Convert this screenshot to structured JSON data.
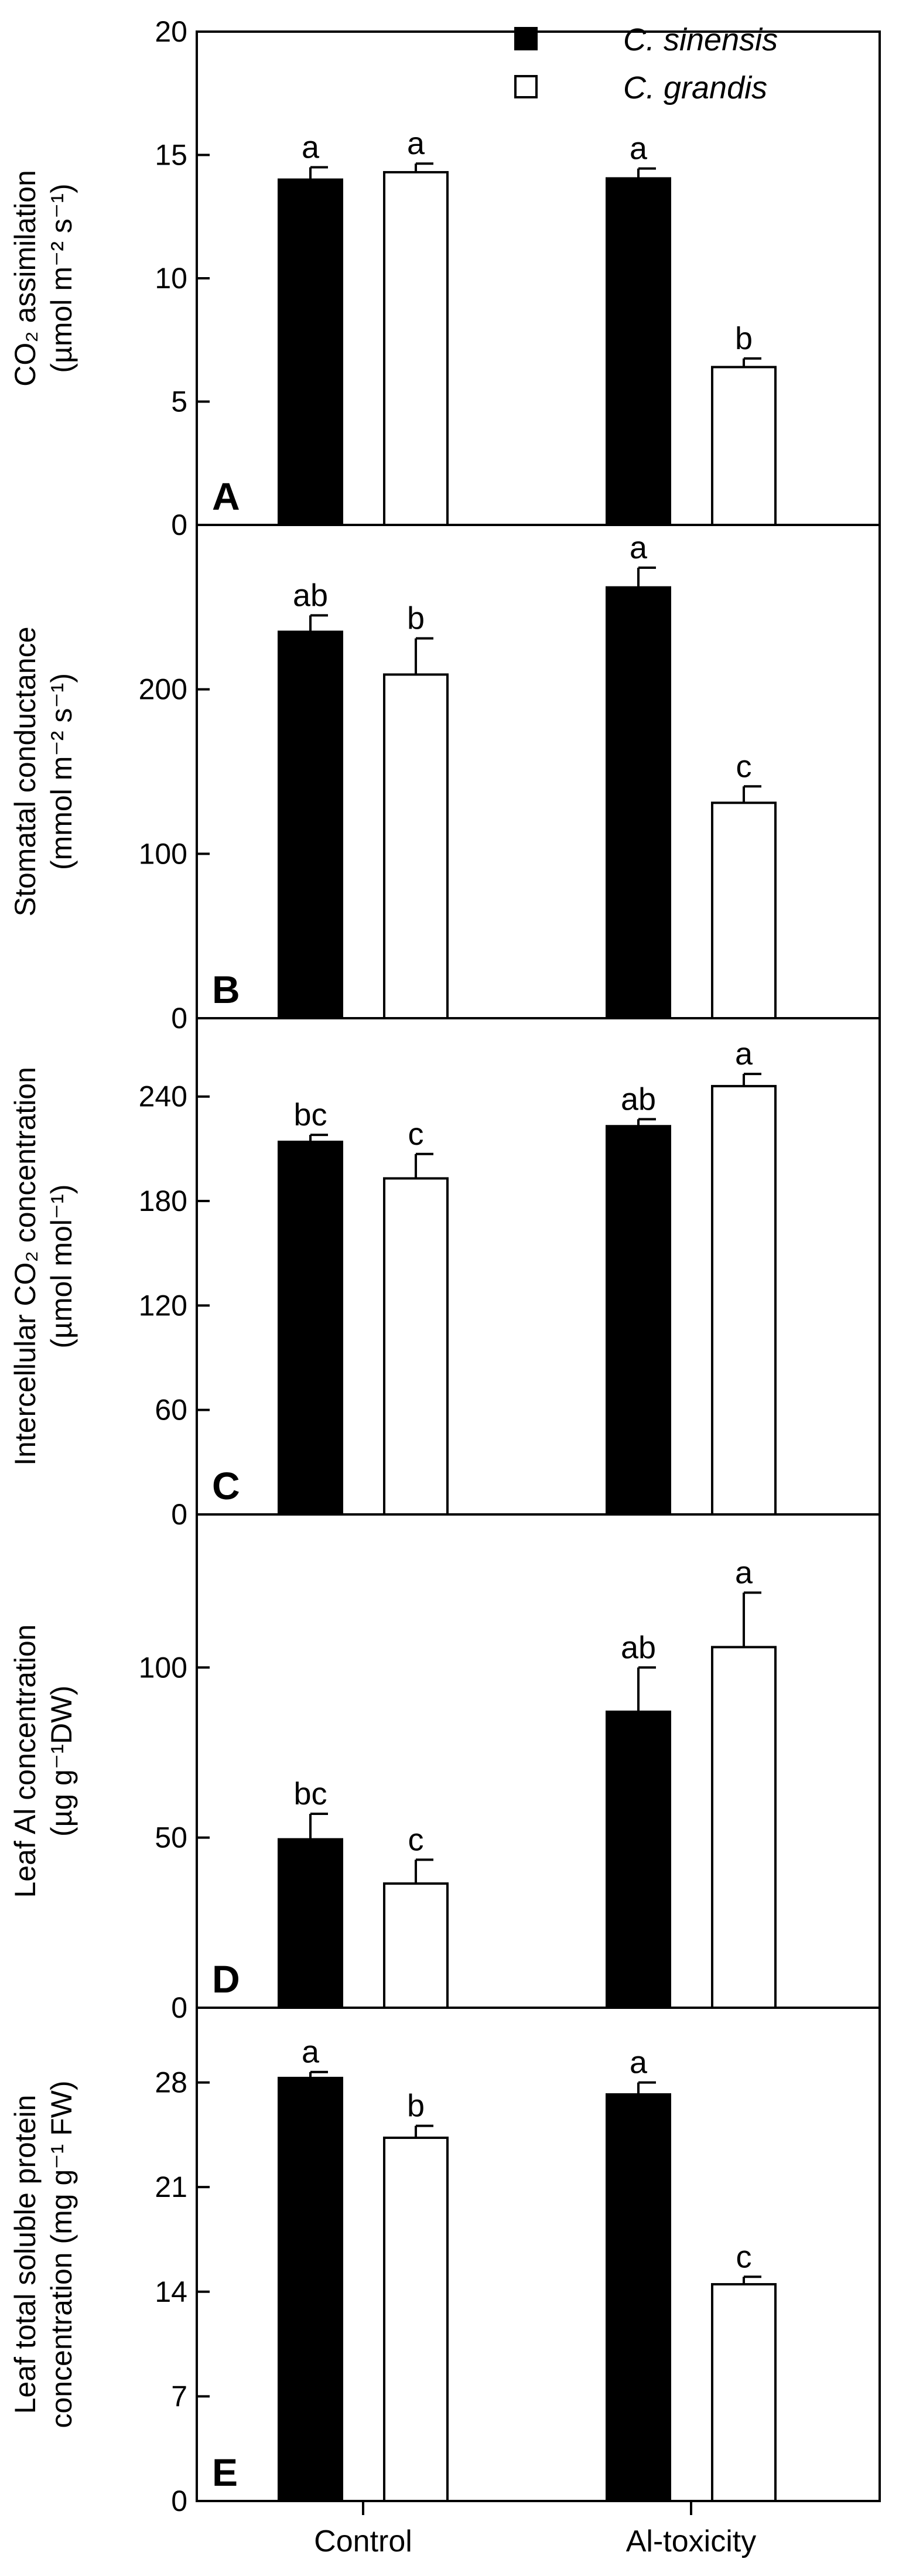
{
  "chart_data": [
    {
      "type": "bar",
      "panel": "A",
      "categories": [
        "Control",
        "Al-toxicity"
      ],
      "series": [
        {
          "name": "C. sinensis",
          "values": [
            14.0,
            14.05
          ],
          "errors": [
            0.5,
            0.4
          ],
          "labels": [
            "a",
            "a"
          ]
        },
        {
          "name": "C. grandis",
          "values": [
            14.3,
            6.4
          ],
          "errors": [
            0.35,
            0.35
          ],
          "labels": [
            "a",
            "b"
          ]
        }
      ],
      "ylabel_lines": [
        "CO₂ assimilation",
        "(µmol m⁻² s⁻¹)"
      ],
      "ylim": [
        0,
        20
      ],
      "yticks": [
        0,
        5,
        10,
        15,
        20
      ],
      "legend": true
    },
    {
      "type": "bar",
      "panel": "B",
      "categories": [
        "Control",
        "Al-toxicity"
      ],
      "series": [
        {
          "name": "C. sinensis",
          "values": [
            235,
            262
          ],
          "errors": [
            10,
            12
          ],
          "labels": [
            "ab",
            "a"
          ]
        },
        {
          "name": "C. grandis",
          "values": [
            209,
            131
          ],
          "errors": [
            22,
            10
          ],
          "labels": [
            "b",
            "c"
          ]
        }
      ],
      "ylabel_lines": [
        "Stomatal conductance",
        "(mmol m⁻² s⁻¹)"
      ],
      "ylim": [
        0,
        300
      ],
      "yticks": [
        0,
        100,
        200
      ],
      "legend": false
    },
    {
      "type": "bar",
      "panel": "C",
      "categories": [
        "Control",
        "Al-toxicity"
      ],
      "series": [
        {
          "name": "C. sinensis",
          "values": [
            214,
            223
          ],
          "errors": [
            4,
            4
          ],
          "labels": [
            "bc",
            "ab"
          ]
        },
        {
          "name": "C. grandis",
          "values": [
            193,
            246
          ],
          "errors": [
            14,
            7
          ],
          "labels": [
            "c",
            "a"
          ]
        }
      ],
      "ylabel_lines": [
        "Intercellular CO₂ concentration",
        "(µmol mol⁻¹)"
      ],
      "ylim": [
        0,
        285
      ],
      "yticks": [
        0,
        60,
        120,
        180,
        240
      ],
      "legend": false
    },
    {
      "type": "bar",
      "panel": "D",
      "categories": [
        "Control",
        "Al-toxicity"
      ],
      "series": [
        {
          "name": "C. sinensis",
          "values": [
            49.5,
            87
          ],
          "errors": [
            7.5,
            13
          ],
          "labels": [
            "bc",
            "ab"
          ]
        },
        {
          "name": "C. grandis",
          "values": [
            36.5,
            106
          ],
          "errors": [
            7,
            16
          ],
          "labels": [
            "c",
            "a"
          ]
        }
      ],
      "ylabel_lines": [
        "Leaf Al concentration",
        "(µg g⁻¹DW)"
      ],
      "ylim": [
        0,
        145
      ],
      "yticks": [
        0,
        50,
        100
      ],
      "legend": false
    },
    {
      "type": "bar",
      "panel": "E",
      "categories": [
        "Control",
        "Al-toxicity"
      ],
      "series": [
        {
          "name": "C. sinensis",
          "values": [
            28.3,
            27.2
          ],
          "errors": [
            0.4,
            0.8
          ],
          "labels": [
            "a",
            "a"
          ]
        },
        {
          "name": "C. grandis",
          "values": [
            24.3,
            14.5
          ],
          "errors": [
            0.8,
            0.5
          ],
          "labels": [
            "b",
            "c"
          ]
        }
      ],
      "ylabel_lines": [
        "Leaf total soluble protein",
        "concentration (mg g⁻¹ FW)"
      ],
      "ylim": [
        0,
        33
      ],
      "yticks": [
        0,
        7,
        14,
        21,
        28
      ],
      "legend": false
    }
  ],
  "legend": {
    "items": [
      {
        "name": "C. sinensis",
        "fill": "#000000"
      },
      {
        "name": "C. grandis",
        "fill": "#ffffff"
      }
    ]
  },
  "colors": {
    "sinensis": "#000000",
    "grandis": "#ffffff",
    "axis": "#000000"
  }
}
